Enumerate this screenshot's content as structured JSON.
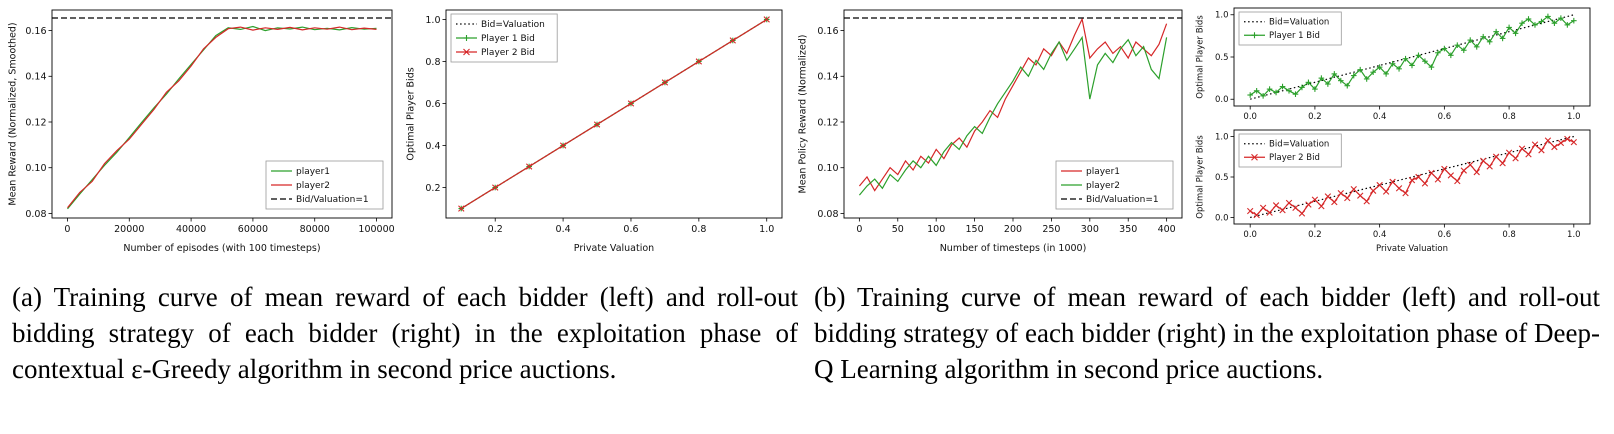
{
  "captions": {
    "a": "(a) Training curve of mean reward of each bidder (left) and roll-out bidding strategy of each bidder (right) in the exploitation phase of contextual ε-Greedy algorithm in second price auctions.",
    "b": "(b) Training curve of mean reward of each bidder (left) and roll-out bidding strategy of each bidder (right) in the exploitation phase of Deep-Q Learning algorithm in second price auctions."
  },
  "colors": {
    "green": "#2ca02c",
    "red": "#d62728",
    "black": "#000000"
  },
  "chart_data": [
    {
      "id": "training-curve-eps-greedy",
      "type": "line",
      "xlabel": "Number of episodes (with 100 timesteps)",
      "ylabel": "Mean Reward (Normalized, Smoothed)",
      "xlim": [
        -5000,
        105000
      ],
      "ylim": [
        0.078,
        0.169
      ],
      "xticks": [
        0,
        20000,
        40000,
        60000,
        80000,
        100000
      ],
      "xtick_labels": [
        "0",
        "20000",
        "40000",
        "60000",
        "80000",
        "100000"
      ],
      "yticks": [
        0.08,
        0.1,
        0.12,
        0.14,
        0.16
      ],
      "ytick_labels": [
        "0.08",
        "0.10",
        "0.12",
        "0.14",
        "0.16"
      ],
      "legend": "lower right",
      "series": [
        {
          "name": "player1",
          "color": "#2ca02c",
          "x": [
            0,
            4000,
            8000,
            12000,
            16000,
            20000,
            24000,
            28000,
            32000,
            36000,
            40000,
            44000,
            48000,
            52000,
            56000,
            60000,
            64000,
            68000,
            72000,
            76000,
            80000,
            84000,
            88000,
            92000,
            96000,
            100000
          ],
          "y": [
            0.082,
            0.0885,
            0.0948,
            0.101,
            0.1068,
            0.1132,
            0.1198,
            0.1262,
            0.1322,
            0.1388,
            0.1452,
            0.1515,
            0.1578,
            0.1612,
            0.1605,
            0.1618,
            0.16,
            0.1612,
            0.1607,
            0.1615,
            0.1604,
            0.161,
            0.1603,
            0.1613,
            0.1606,
            0.161
          ]
        },
        {
          "name": "player2",
          "color": "#d62728",
          "x": [
            0,
            4000,
            8000,
            12000,
            16000,
            20000,
            24000,
            28000,
            32000,
            36000,
            40000,
            44000,
            48000,
            52000,
            56000,
            60000,
            64000,
            68000,
            72000,
            76000,
            80000,
            84000,
            88000,
            92000,
            96000,
            100000
          ],
          "y": [
            0.0825,
            0.0892,
            0.094,
            0.1018,
            0.1075,
            0.1125,
            0.119,
            0.1255,
            0.133,
            0.138,
            0.1445,
            0.152,
            0.157,
            0.1608,
            0.1615,
            0.1602,
            0.1612,
            0.1605,
            0.1614,
            0.1603,
            0.1612,
            0.1606,
            0.1615,
            0.1604,
            0.1611,
            0.1605
          ]
        },
        {
          "name": "Bid/Valuation=1",
          "color": "#000000",
          "style": "dashed",
          "x": [
            -5000,
            105000
          ],
          "y": [
            0.1655,
            0.1655
          ]
        }
      ]
    },
    {
      "id": "rollout-bids-eps-greedy",
      "type": "line",
      "xlabel": "Private Valuation",
      "ylabel": "Optimal Player Bids",
      "xlim": [
        0.055,
        1.045
      ],
      "ylim": [
        0.055,
        1.045
      ],
      "xticks": [
        0.2,
        0.4,
        0.6,
        0.8,
        1.0
      ],
      "xtick_labels": [
        "0.2",
        "0.4",
        "0.6",
        "0.8",
        "1.0"
      ],
      "yticks": [
        0.2,
        0.4,
        0.6,
        0.8,
        1.0
      ],
      "ytick_labels": [
        "0.2",
        "0.4",
        "0.6",
        "0.8",
        "1.0"
      ],
      "legend": "upper left",
      "series": [
        {
          "name": "Bid=Valuation",
          "color": "#000000",
          "style": "dotted",
          "x": [
            0.1,
            1.0
          ],
          "y": [
            0.1,
            1.0
          ]
        },
        {
          "name": "Player 1 Bid",
          "color": "#2ca02c",
          "marker": "plus",
          "x": [
            0.1,
            0.2,
            0.3,
            0.4,
            0.5,
            0.6,
            0.7,
            0.8,
            0.9,
            1.0
          ],
          "y": [
            0.1,
            0.2,
            0.3,
            0.4,
            0.5,
            0.6,
            0.7,
            0.8,
            0.9,
            1.0
          ]
        },
        {
          "name": "Player 2 Bid",
          "color": "#d62728",
          "marker": "x",
          "x": [
            0.1,
            0.2,
            0.3,
            0.4,
            0.5,
            0.6,
            0.7,
            0.8,
            0.9,
            1.0
          ],
          "y": [
            0.1,
            0.2,
            0.3,
            0.4,
            0.5,
            0.6,
            0.7,
            0.8,
            0.9,
            1.0
          ]
        }
      ]
    },
    {
      "id": "training-curve-dqn",
      "type": "line",
      "xlabel": "Number of timesteps (in 1000)",
      "ylabel": "Mean Policy Reward (Normalized)",
      "xlim": [
        -20,
        420
      ],
      "ylim": [
        0.078,
        0.169
      ],
      "xticks": [
        0,
        50,
        100,
        150,
        200,
        250,
        300,
        350,
        400
      ],
      "xtick_labels": [
        "0",
        "50",
        "100",
        "150",
        "200",
        "250",
        "300",
        "350",
        "400"
      ],
      "yticks": [
        0.08,
        0.1,
        0.12,
        0.14,
        0.16
      ],
      "ytick_labels": [
        "0.08",
        "0.10",
        "0.12",
        "0.14",
        "0.16"
      ],
      "legend": "lower right",
      "series": [
        {
          "name": "player1",
          "color": "#d62728",
          "x": [
            0,
            10,
            20,
            30,
            40,
            50,
            60,
            70,
            80,
            90,
            100,
            110,
            120,
            130,
            140,
            150,
            160,
            170,
            180,
            190,
            200,
            210,
            220,
            230,
            240,
            250,
            260,
            270,
            280,
            290,
            300,
            310,
            320,
            330,
            340,
            350,
            360,
            370,
            380,
            390,
            400
          ],
          "y": [
            0.092,
            0.096,
            0.09,
            0.095,
            0.1,
            0.097,
            0.103,
            0.099,
            0.105,
            0.102,
            0.108,
            0.104,
            0.11,
            0.113,
            0.109,
            0.116,
            0.12,
            0.125,
            0.122,
            0.13,
            0.136,
            0.142,
            0.148,
            0.145,
            0.152,
            0.149,
            0.155,
            0.15,
            0.158,
            0.165,
            0.148,
            0.152,
            0.155,
            0.15,
            0.153,
            0.148,
            0.155,
            0.152,
            0.149,
            0.154,
            0.163
          ]
        },
        {
          "name": "player2",
          "color": "#2ca02c",
          "x": [
            0,
            10,
            20,
            30,
            40,
            50,
            60,
            70,
            80,
            90,
            100,
            110,
            120,
            130,
            140,
            150,
            160,
            170,
            180,
            190,
            200,
            210,
            220,
            230,
            240,
            250,
            260,
            270,
            280,
            290,
            300,
            310,
            320,
            330,
            340,
            350,
            360,
            370,
            380,
            390,
            400
          ],
          "y": [
            0.088,
            0.092,
            0.095,
            0.091,
            0.097,
            0.094,
            0.099,
            0.103,
            0.1,
            0.105,
            0.101,
            0.107,
            0.111,
            0.108,
            0.114,
            0.118,
            0.115,
            0.122,
            0.128,
            0.133,
            0.138,
            0.144,
            0.14,
            0.147,
            0.143,
            0.15,
            0.155,
            0.147,
            0.152,
            0.157,
            0.13,
            0.145,
            0.15,
            0.146,
            0.152,
            0.156,
            0.149,
            0.153,
            0.143,
            0.139,
            0.157
          ]
        },
        {
          "name": "Bid/Valuation=1",
          "color": "#000000",
          "style": "dashed",
          "x": [
            -20,
            420
          ],
          "y": [
            0.1655,
            0.1655
          ]
        }
      ]
    },
    {
      "id": "rollout-bids-dqn-player1",
      "type": "line",
      "xlabel": "",
      "ylabel": "Optimal Player Bids",
      "xlim": [
        -0.05,
        1.05
      ],
      "ylim": [
        -0.08,
        1.08
      ],
      "xticks": [
        0.0,
        0.2,
        0.4,
        0.6,
        0.8,
        1.0
      ],
      "xtick_labels": [
        "0.0",
        "0.2",
        "0.4",
        "0.6",
        "0.8",
        "1.0"
      ],
      "yticks": [
        0.0,
        0.5,
        1.0
      ],
      "ytick_labels": [
        "0.0",
        "0.5",
        "1.0"
      ],
      "legend": "upper left",
      "series": [
        {
          "name": "Bid=Valuation",
          "color": "#000000",
          "style": "dotted",
          "x": [
            0,
            1
          ],
          "y": [
            0,
            1
          ]
        },
        {
          "name": "Player 1 Bid",
          "color": "#2ca02c",
          "marker": "plus",
          "x": [
            0,
            0.02,
            0.04,
            0.06,
            0.08,
            0.1,
            0.12,
            0.14,
            0.16,
            0.18,
            0.2,
            0.22,
            0.24,
            0.26,
            0.28,
            0.3,
            0.32,
            0.34,
            0.36,
            0.38,
            0.4,
            0.42,
            0.44,
            0.46,
            0.48,
            0.5,
            0.52,
            0.54,
            0.56,
            0.58,
            0.6,
            0.62,
            0.64,
            0.66,
            0.68,
            0.7,
            0.72,
            0.74,
            0.76,
            0.78,
            0.8,
            0.82,
            0.84,
            0.86,
            0.88,
            0.9,
            0.92,
            0.94,
            0.96,
            0.98,
            1.0
          ],
          "y": [
            0.05,
            0.1,
            0.04,
            0.12,
            0.08,
            0.15,
            0.1,
            0.06,
            0.14,
            0.2,
            0.12,
            0.25,
            0.18,
            0.3,
            0.22,
            0.16,
            0.28,
            0.35,
            0.24,
            0.32,
            0.38,
            0.3,
            0.42,
            0.36,
            0.48,
            0.4,
            0.52,
            0.45,
            0.38,
            0.55,
            0.6,
            0.52,
            0.64,
            0.58,
            0.7,
            0.62,
            0.74,
            0.68,
            0.8,
            0.72,
            0.85,
            0.78,
            0.9,
            0.95,
            0.88,
            0.92,
            0.98,
            0.9,
            0.96,
            0.88,
            0.93
          ]
        }
      ]
    },
    {
      "id": "rollout-bids-dqn-player2",
      "type": "line",
      "xlabel": "Private Valuation",
      "ylabel": "Optimal Player Bids",
      "xlim": [
        -0.05,
        1.05
      ],
      "ylim": [
        -0.08,
        1.08
      ],
      "xticks": [
        0.0,
        0.2,
        0.4,
        0.6,
        0.8,
        1.0
      ],
      "xtick_labels": [
        "0.0",
        "0.2",
        "0.4",
        "0.6",
        "0.8",
        "1.0"
      ],
      "yticks": [
        0.0,
        0.5,
        1.0
      ],
      "ytick_labels": [
        "0.0",
        "0.5",
        "1.0"
      ],
      "legend": "upper left",
      "series": [
        {
          "name": "Bid=Valuation",
          "color": "#000000",
          "style": "dotted",
          "x": [
            0,
            1
          ],
          "y": [
            0,
            1
          ]
        },
        {
          "name": "Player 2 Bid",
          "color": "#d62728",
          "marker": "x",
          "x": [
            0,
            0.02,
            0.04,
            0.06,
            0.08,
            0.1,
            0.12,
            0.14,
            0.16,
            0.18,
            0.2,
            0.22,
            0.24,
            0.26,
            0.28,
            0.3,
            0.32,
            0.34,
            0.36,
            0.38,
            0.4,
            0.42,
            0.44,
            0.46,
            0.48,
            0.5,
            0.52,
            0.54,
            0.56,
            0.58,
            0.6,
            0.62,
            0.64,
            0.66,
            0.68,
            0.7,
            0.72,
            0.74,
            0.76,
            0.78,
            0.8,
            0.82,
            0.84,
            0.86,
            0.88,
            0.9,
            0.92,
            0.94,
            0.96,
            0.98,
            1.0
          ],
          "y": [
            0.08,
            0.03,
            0.12,
            0.06,
            0.15,
            0.09,
            0.18,
            0.12,
            0.05,
            0.16,
            0.22,
            0.14,
            0.26,
            0.19,
            0.3,
            0.24,
            0.35,
            0.27,
            0.2,
            0.33,
            0.4,
            0.32,
            0.44,
            0.36,
            0.3,
            0.46,
            0.5,
            0.42,
            0.55,
            0.47,
            0.6,
            0.52,
            0.45,
            0.58,
            0.65,
            0.56,
            0.7,
            0.63,
            0.75,
            0.67,
            0.8,
            0.73,
            0.85,
            0.78,
            0.9,
            0.83,
            0.95,
            0.87,
            0.92,
            0.97,
            0.93
          ]
        }
      ]
    }
  ]
}
